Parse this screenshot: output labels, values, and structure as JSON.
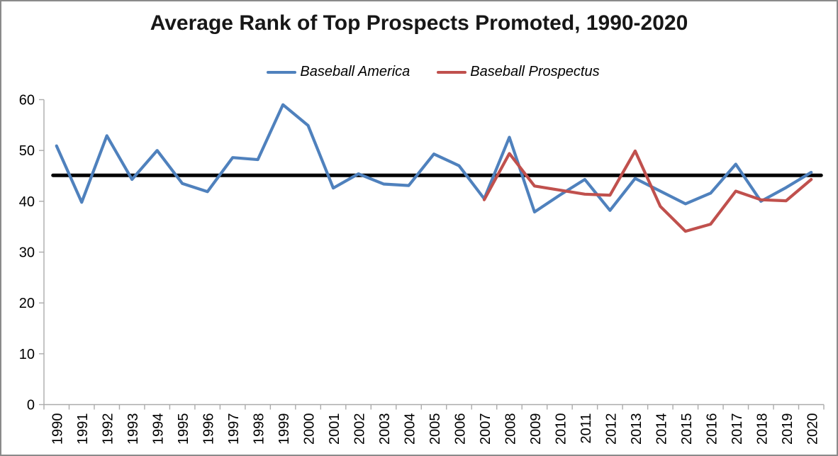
{
  "title": "Average Rank of Top Prospects Promoted, 1990-2020",
  "legend": {
    "items": [
      {
        "label": "Baseball America",
        "color": "#4F81BD"
      },
      {
        "label": "Baseball Prospectus",
        "color": "#C0504D"
      }
    ]
  },
  "chart_data": {
    "type": "line",
    "title": "Average Rank of Top Prospects Promoted, 1990-2020",
    "categories": [
      1990,
      1991,
      1992,
      1993,
      1994,
      1995,
      1996,
      1997,
      1998,
      1999,
      2000,
      2001,
      2002,
      2003,
      2004,
      2005,
      2006,
      2007,
      2008,
      2009,
      2010,
      2011,
      2012,
      2013,
      2014,
      2015,
      2016,
      2017,
      2018,
      2019,
      2020
    ],
    "series": [
      {
        "name": "Baseball America",
        "color": "#4F81BD",
        "values": [
          50.9,
          39.8,
          52.9,
          44.3,
          50.0,
          43.5,
          41.9,
          48.6,
          48.2,
          59.0,
          54.9,
          42.6,
          45.4,
          43.4,
          43.1,
          49.3,
          47.0,
          40.5,
          52.6,
          37.9,
          41.2,
          44.3,
          38.2,
          44.5,
          42.0,
          39.5,
          41.6,
          47.3,
          40.0,
          42.7,
          45.7
        ]
      },
      {
        "name": "Baseball Prospectus",
        "color": "#C0504D",
        "values": [
          null,
          null,
          null,
          null,
          null,
          null,
          null,
          null,
          null,
          null,
          null,
          null,
          null,
          null,
          null,
          null,
          null,
          40.3,
          49.4,
          43.0,
          42.2,
          41.4,
          41.2,
          49.9,
          39.0,
          34.1,
          35.5,
          42.0,
          40.3,
          40.1,
          44.3
        ]
      }
    ],
    "reference_line": {
      "value": 45.1,
      "color": "#000000"
    },
    "ylim": [
      0,
      60
    ],
    "ytick_step": 10,
    "yticks": [
      0,
      10,
      20,
      30,
      40,
      50,
      60
    ],
    "xlabel": "",
    "ylabel": "",
    "grid": false,
    "legend_position": "top-center",
    "axis_color": "#ABABAB",
    "tick_label_color": "#000000"
  }
}
